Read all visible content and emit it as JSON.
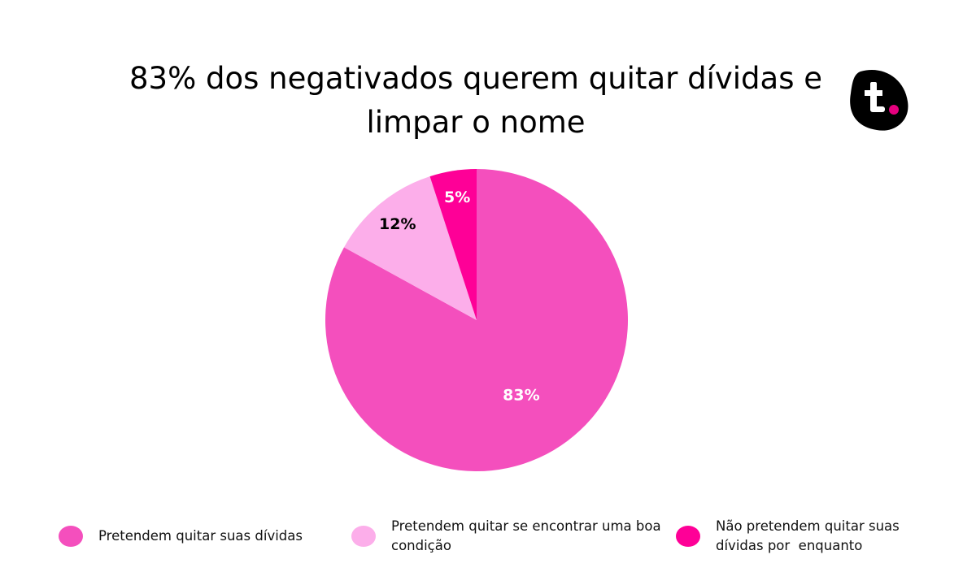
{
  "chart_data": {
    "type": "pie",
    "title": "83% dos negativados querem quitar dívidas e limpar o nome",
    "categories": [
      "Pretendem quitar suas dívidas",
      "Pretendem quitar se encontrar uma boa condição",
      "Não pretendem quitar suas dívidas por  enquanto"
    ],
    "values": [
      83,
      12,
      5
    ],
    "value_labels": [
      "83%",
      "12%",
      "5%"
    ],
    "colors": [
      "#f44fbd",
      "#fcaeea",
      "#fe0097"
    ],
    "label_colors": [
      "#ffffff",
      "#000000",
      "#ffffff"
    ],
    "legend": "bottom"
  }
}
